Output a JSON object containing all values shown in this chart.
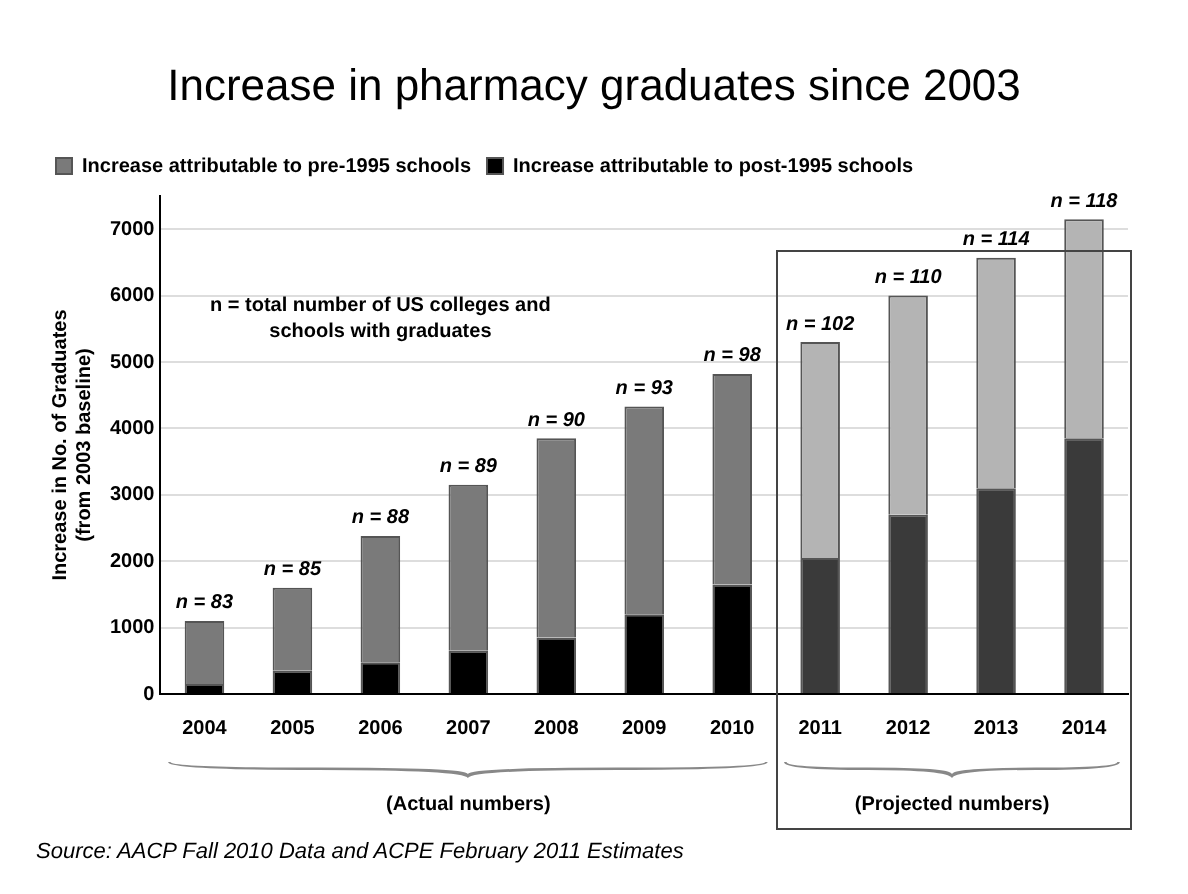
{
  "chart_data": {
    "type": "bar",
    "stacked": true,
    "title": "Increase in pharmacy graduates since 2003",
    "ylabel": "Increase in No. of Graduates\n(from 2003 baseline)",
    "categories": [
      "2004",
      "2005",
      "2006",
      "2007",
      "2008",
      "2009",
      "2010",
      "2011",
      "2012",
      "2013",
      "2014"
    ],
    "series": [
      {
        "name": "Increase attributable to post-1995 schools",
        "color": "#000000",
        "colors": [
          "#000000",
          "#000000",
          "#000000",
          "#000000",
          "#000000",
          "#000000",
          "#000000",
          "#3a3a3a",
          "#3a3a3a",
          "#3a3a3a",
          "#3a3a3a"
        ],
        "values": [
          150,
          350,
          480,
          650,
          850,
          1200,
          1650,
          2050,
          2700,
          3100,
          3850
        ]
      },
      {
        "name": "Increase attributable to pre-1995 schools",
        "color": "#7a7a7a",
        "colors": [
          "#7a7a7a",
          "#7a7a7a",
          "#7a7a7a",
          "#7a7a7a",
          "#7a7a7a",
          "#7a7a7a",
          "#7a7a7a",
          "#b4b4b4",
          "#b4b4b4",
          "#b4b4b4",
          "#b4b4b4"
        ],
        "values": [
          950,
          1250,
          1900,
          2500,
          3000,
          3130,
          3170,
          3250,
          3300,
          3470,
          3300
        ]
      }
    ],
    "ylim": [
      0,
      7500
    ],
    "yticks": [
      0,
      1000,
      2000,
      3000,
      4000,
      5000,
      6000,
      7000
    ],
    "grid": "y",
    "legend": "top left",
    "annotations": [
      {
        "text": "n = 83",
        "x": "2004",
        "y": 1100
      },
      {
        "text": "n = 85",
        "x": "2005",
        "y": 1600
      },
      {
        "text": "n = 88",
        "x": "2006",
        "y": 2380
      },
      {
        "text": "n = 89",
        "x": "2007",
        "y": 3150
      },
      {
        "text": "n = 90",
        "x": "2008",
        "y": 3850
      },
      {
        "text": "n = 93",
        "x": "2009",
        "y": 4330
      },
      {
        "text": "n = 98",
        "x": "2010",
        "y": 4820
      },
      {
        "text": "n = 102",
        "x": "2011",
        "y": 5300
      },
      {
        "text": "n = 110",
        "x": "2012",
        "y": 6000
      },
      {
        "text": "n = 114",
        "x": "2013",
        "y": 6570
      },
      {
        "text": "n = 118",
        "x": "2014",
        "y": 7150
      },
      "n = total number of US colleges and\nschools with graduates",
      "(Actual numbers)",
      "(Projected numbers)",
      "Source: AACP Fall 2010 Data and ACPE February 2011 Estimates"
    ]
  }
}
